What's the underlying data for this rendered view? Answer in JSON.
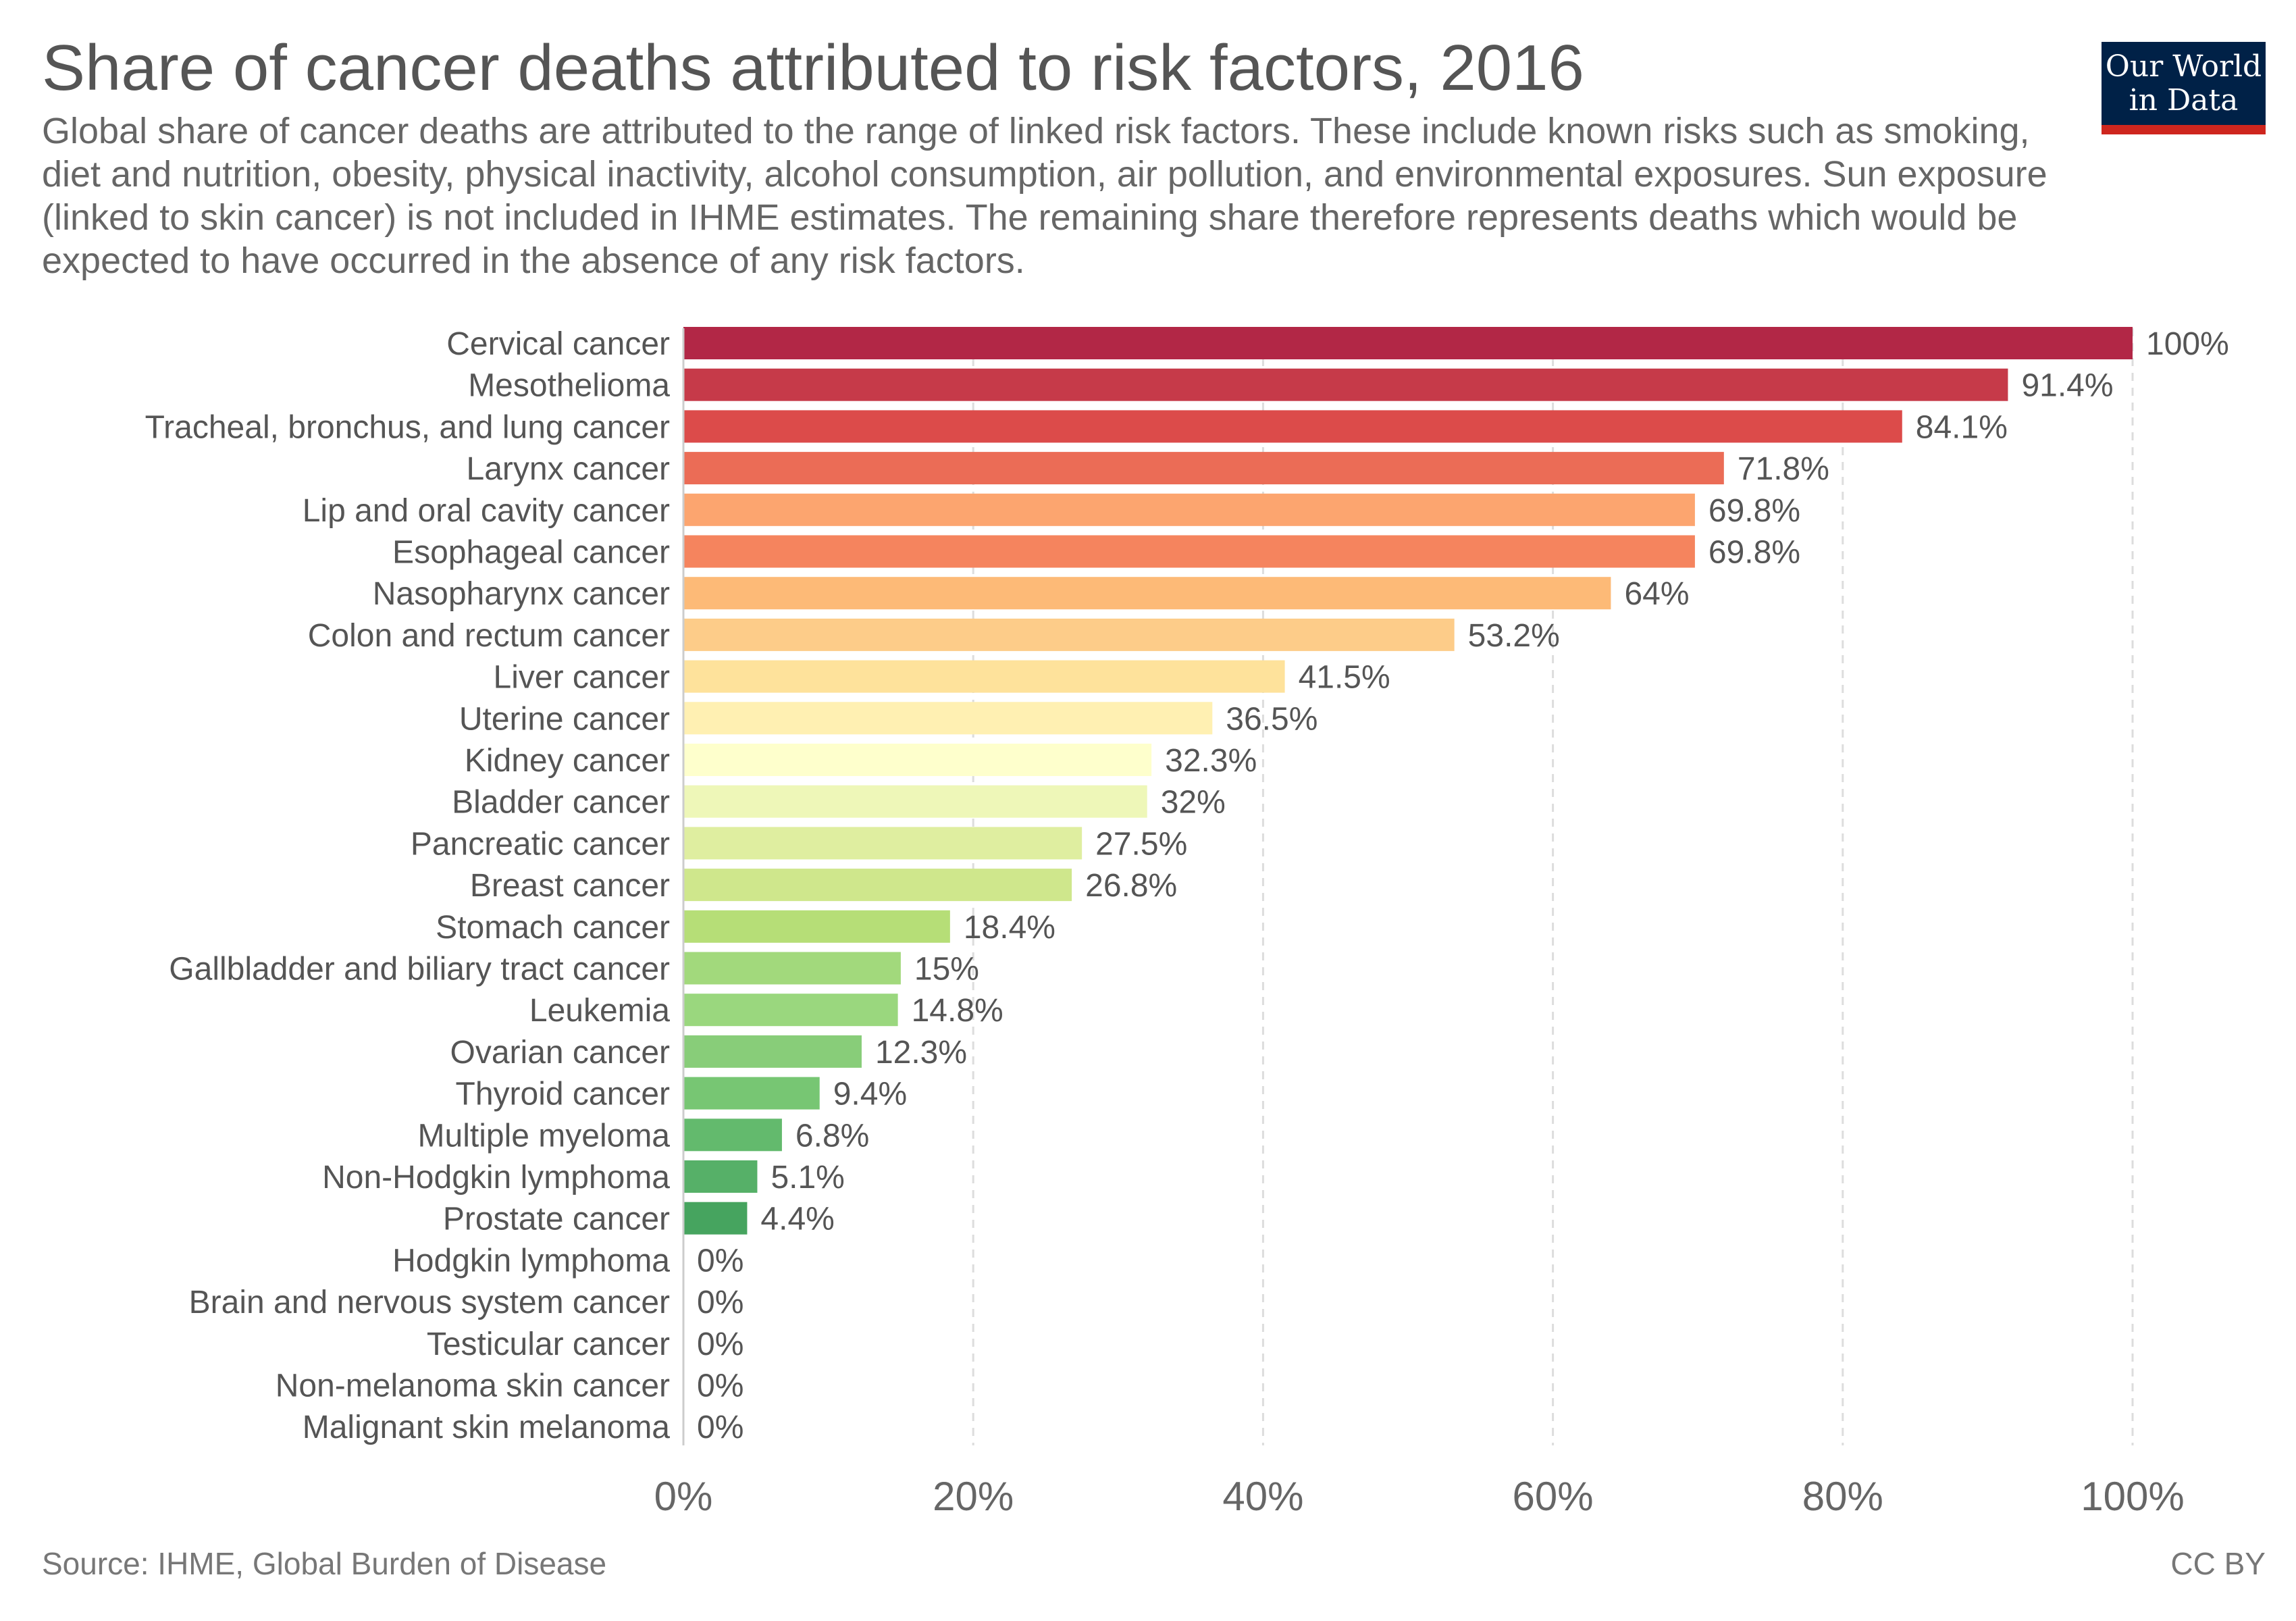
{
  "header": {
    "title": "Share of cancer deaths attributed to risk factors, 2016",
    "subtitle": "Global share of cancer deaths are attributed to the range of linked risk factors. These include known risks such as smoking, diet and nutrition, obesity, physical inactivity, alcohol consumption, air pollution, and environmental exposures. Sun exposure (linked to skin cancer) is not included in IHME estimates. The remaining share therefore represents deaths which would be expected to have occurred in the absence of any risk factors."
  },
  "logo": {
    "line1": "Our World",
    "line2": "in Data"
  },
  "footer": {
    "source": "Source: IHME, Global Burden of Disease",
    "license": "CC BY"
  },
  "colors": {
    "logo_bg": "#002147",
    "logo_accent": "#ce261e",
    "grid": "#dddddd"
  },
  "chart_data": {
    "type": "bar",
    "orientation": "horizontal",
    "title": "Share of cancer deaths attributed to risk factors, 2016",
    "xlim": [
      0,
      100
    ],
    "x_ticks": [
      0,
      20,
      40,
      60,
      80,
      100
    ],
    "x_tick_labels": [
      "0%",
      "20%",
      "40%",
      "60%",
      "80%",
      "100%"
    ],
    "grid": "vertical dashed",
    "categories": [
      "Cervical cancer",
      "Mesothelioma",
      "Tracheal, bronchus, and lung cancer",
      "Larynx cancer",
      "Lip and oral cavity cancer",
      "Esophageal cancer",
      "Nasopharynx cancer",
      "Colon and rectum cancer",
      "Liver cancer",
      "Uterine cancer",
      "Kidney cancer",
      "Bladder cancer",
      "Pancreatic cancer",
      "Breast cancer",
      "Stomach cancer",
      "Gallbladder and biliary tract cancer",
      "Leukemia",
      "Ovarian cancer",
      "Thyroid cancer",
      "Multiple myeloma",
      "Non-Hodgkin lymphoma",
      "Prostate cancer",
      "Hodgkin lymphoma",
      "Brain and nervous system cancer",
      "Testicular cancer",
      "Non-melanoma skin cancer",
      "Malignant skin melanoma"
    ],
    "values": [
      100,
      91.4,
      84.1,
      71.8,
      69.8,
      69.8,
      64,
      53.2,
      41.5,
      36.5,
      32.3,
      32,
      27.5,
      26.8,
      18.4,
      15,
      14.8,
      12.3,
      9.4,
      6.8,
      5.1,
      4.4,
      0,
      0,
      0,
      0,
      0
    ],
    "value_labels": [
      "100%",
      "91.4%",
      "84.1%",
      "71.8%",
      "69.8%",
      "69.8%",
      "64%",
      "53.2%",
      "41.5%",
      "36.5%",
      "32.3%",
      "32%",
      "27.5%",
      "26.8%",
      "18.4%",
      "15%",
      "14.8%",
      "12.3%",
      "9.4%",
      "6.8%",
      "5.1%",
      "4.4%",
      "0%",
      "0%",
      "0%",
      "0%",
      "0%"
    ],
    "bar_colors": [
      "#b22746",
      "#c63a49",
      "#dc4b4a",
      "#eb6c56",
      "#fca56f",
      "#f5845e",
      "#fdba77",
      "#fdcc89",
      "#fee29b",
      "#fff0b2",
      "#feffcc",
      "#eef7b8",
      "#dfeea0",
      "#cfe78c",
      "#b6de77",
      "#a2d97c",
      "#9ad77e",
      "#88cd79",
      "#77c673",
      "#63ba6d",
      "#56b068",
      "#46a45f",
      "#999999",
      "#999999",
      "#999999",
      "#999999",
      "#999999"
    ]
  }
}
